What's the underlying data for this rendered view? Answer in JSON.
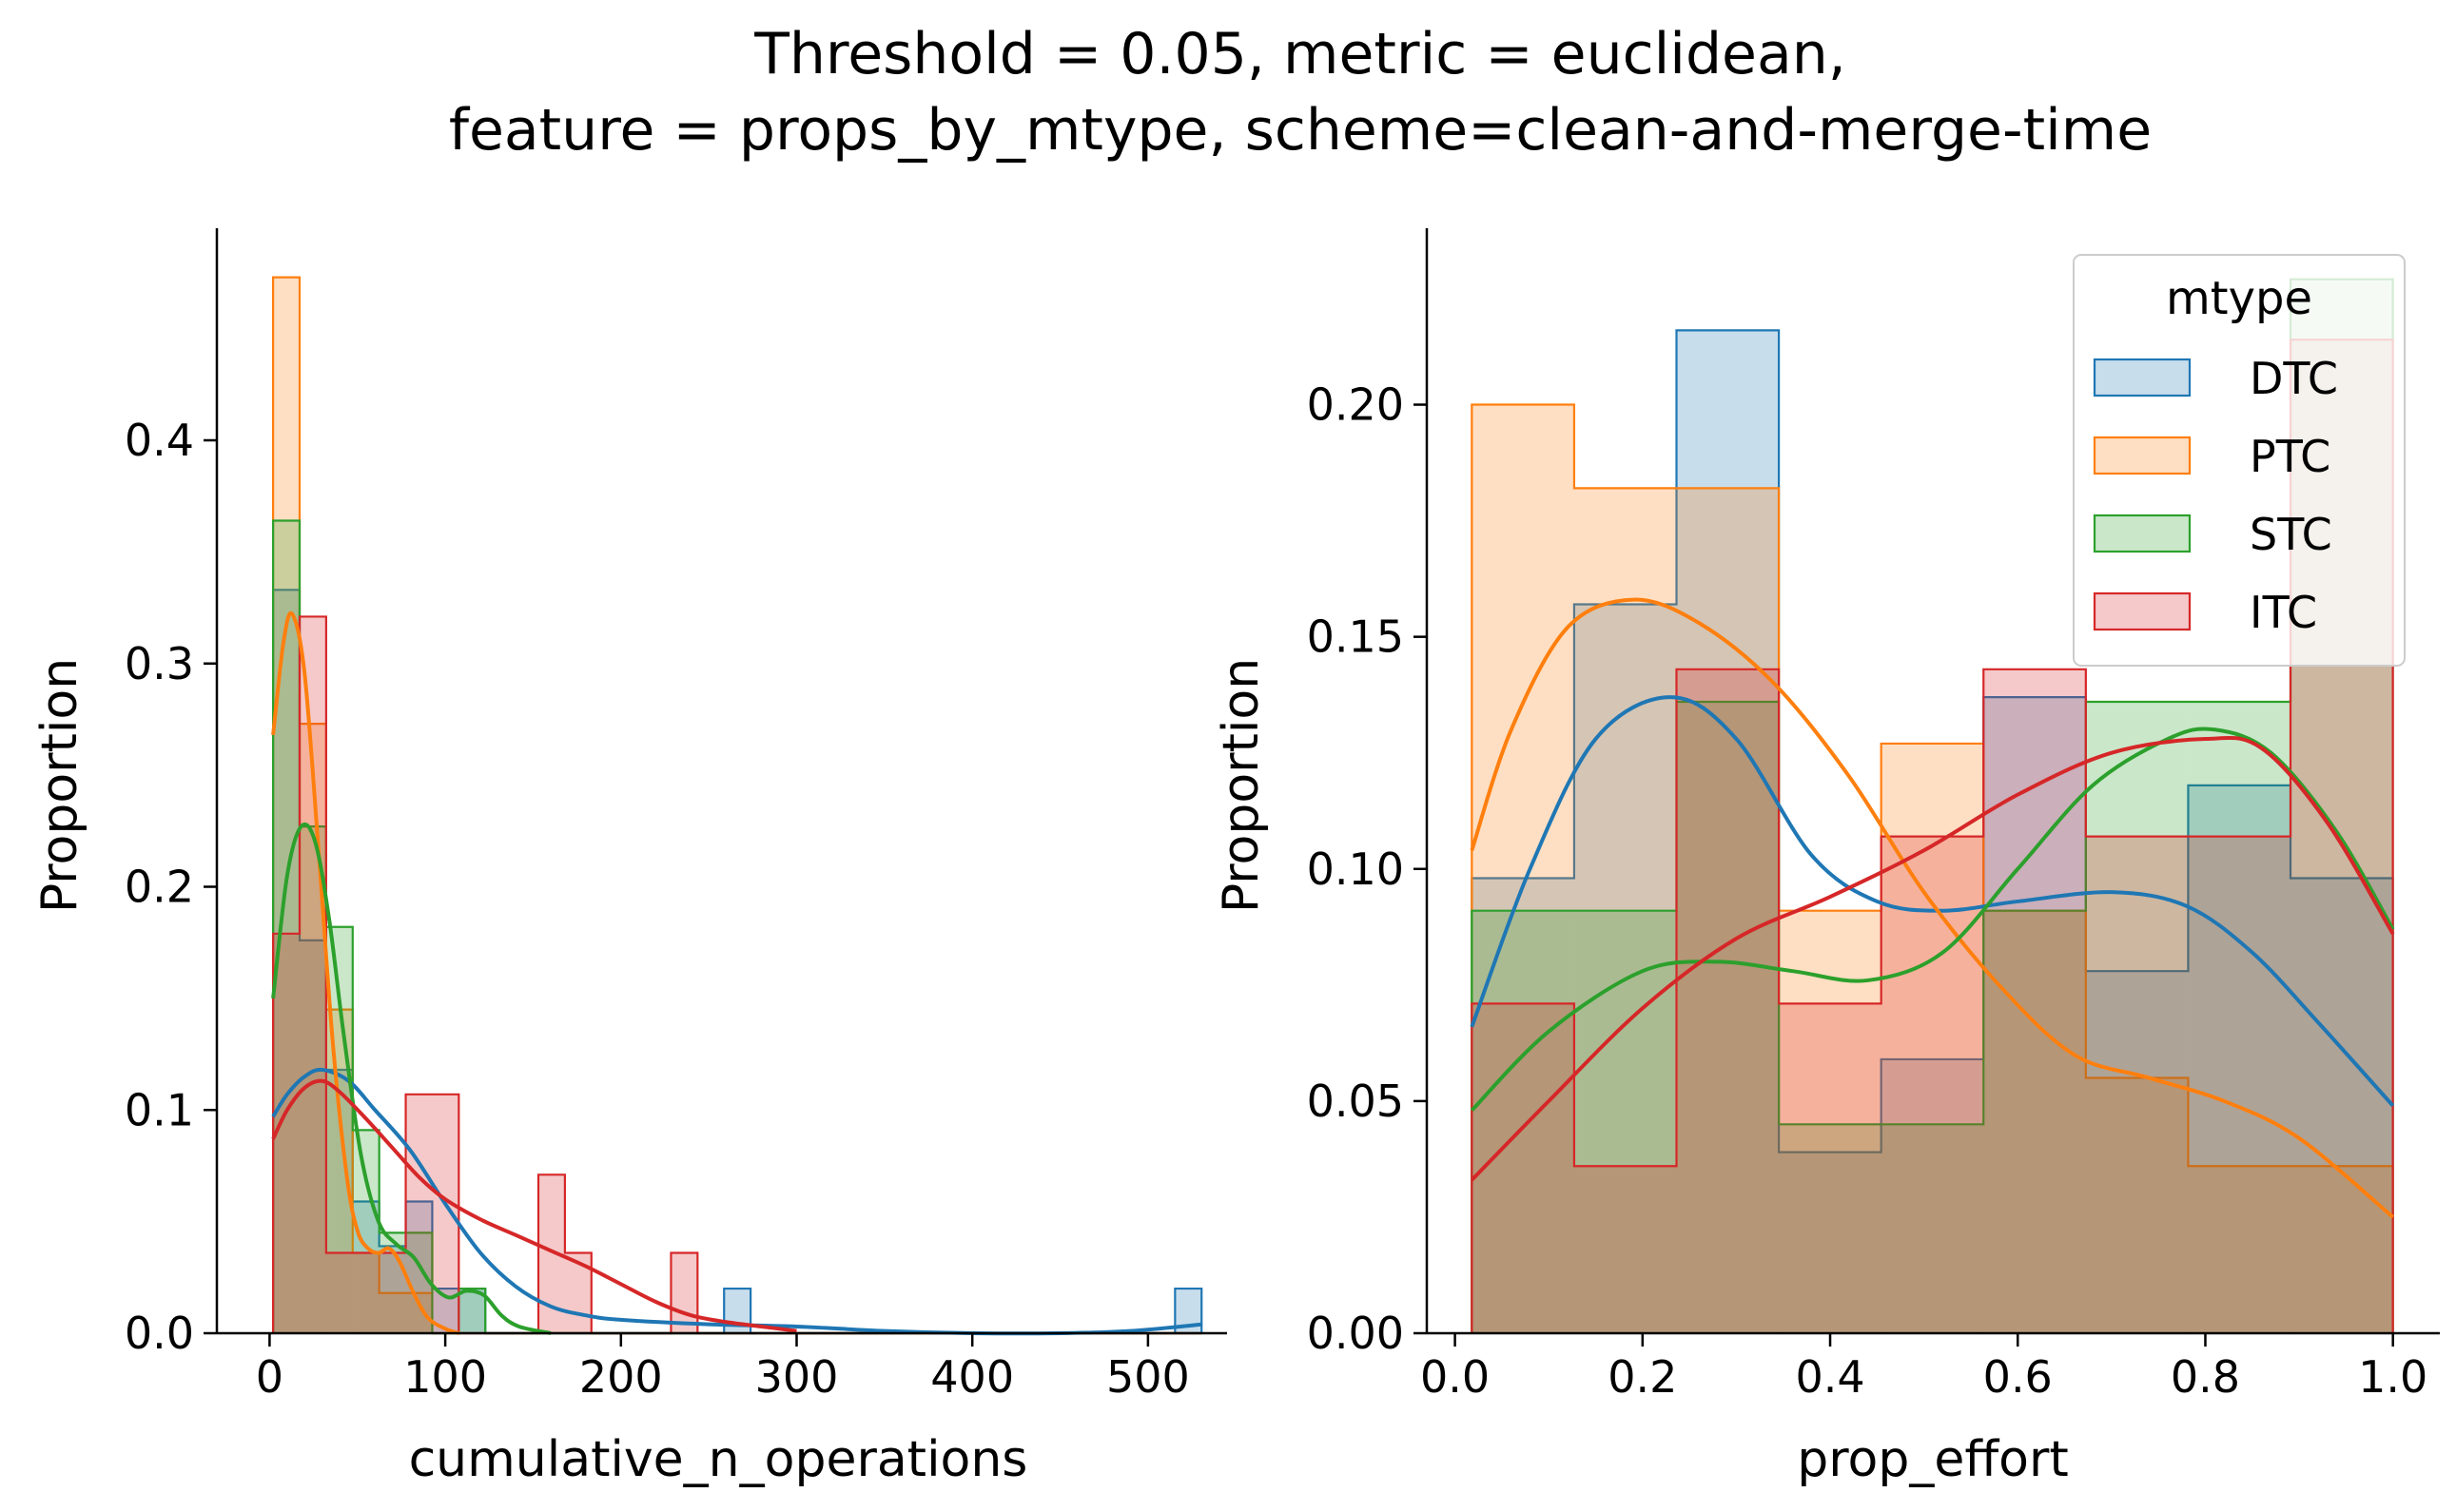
{
  "figure": {
    "title_line1": "Threshold = 0.05, metric = euclidean,",
    "title_line2": "feature = props_by_mtype, scheme=clean-and-merge-time"
  },
  "colors": {
    "DTC": "#1f77b4",
    "PTC": "#ff7f0e",
    "STC": "#2ca02c",
    "ITC": "#d62728"
  },
  "chart_data": [
    {
      "type": "histogram",
      "xlabel": "cumulative_n_operations",
      "ylabel": "Proportion",
      "xlim": [
        -30,
        545
      ],
      "ylim": [
        0,
        0.495
      ],
      "xticks": [
        0,
        100,
        200,
        300,
        400,
        500
      ],
      "xtick_labels": [
        "0",
        "100",
        "200",
        "300",
        "400",
        "500"
      ],
      "yticks": [
        0,
        0.1,
        0.2,
        0.3,
        0.4
      ],
      "ytick_labels": [
        "0.0",
        "0.1",
        "0.2",
        "0.3",
        "0.4"
      ],
      "bin_start": 2,
      "bin_width": 15.1,
      "series": [
        {
          "name": "DTC",
          "values": [
            0.333,
            0.176,
            0.118,
            0.059,
            0.039,
            0.059,
            0.02,
            0.02,
            0,
            0,
            0,
            0,
            0,
            0,
            0,
            0,
            0,
            0.02,
            0,
            0,
            0,
            0,
            0,
            0,
            0,
            0,
            0,
            0,
            0,
            0,
            0,
            0,
            0,
            0,
            0.02
          ],
          "kde": [
            [
              2,
              0.097
            ],
            [
              10,
              0.107
            ],
            [
              20,
              0.115
            ],
            [
              30,
              0.118
            ],
            [
              45,
              0.113
            ],
            [
              60,
              0.1
            ],
            [
              80,
              0.082
            ],
            [
              100,
              0.058
            ],
            [
              120,
              0.036
            ],
            [
              140,
              0.021
            ],
            [
              160,
              0.012
            ],
            [
              180,
              0.008
            ],
            [
              200,
              0.006
            ],
            [
              250,
              0.004
            ],
            [
              300,
              0.003
            ],
            [
              350,
              0.001
            ],
            [
              400,
              0.0
            ],
            [
              450,
              0.0
            ],
            [
              490,
              0.001
            ],
            [
              531,
              0.004
            ]
          ]
        },
        {
          "name": "PTC",
          "values": [
            0.473,
            0.273,
            0.145,
            0.036,
            0.018,
            0.018,
            0,
            0,
            0,
            0,
            0,
            0,
            0,
            0,
            0,
            0,
            0,
            0,
            0,
            0,
            0,
            0,
            0,
            0,
            0,
            0,
            0,
            0,
            0,
            0,
            0,
            0,
            0,
            0,
            0
          ],
          "kde": [
            [
              2,
              0.268
            ],
            [
              8,
              0.31
            ],
            [
              13,
              0.322
            ],
            [
              20,
              0.295
            ],
            [
              28,
              0.215
            ],
            [
              36,
              0.13
            ],
            [
              44,
              0.07
            ],
            [
              50,
              0.046
            ],
            [
              56,
              0.038
            ],
            [
              62,
              0.036
            ],
            [
              68,
              0.038
            ],
            [
              74,
              0.032
            ],
            [
              82,
              0.018
            ],
            [
              90,
              0.007
            ],
            [
              100,
              0.002
            ],
            [
              108,
              0.0
            ]
          ]
        },
        {
          "name": "STC",
          "values": [
            0.364,
            0.227,
            0.182,
            0.091,
            0.045,
            0.045,
            0,
            0.02,
            0,
            0,
            0,
            0,
            0,
            0,
            0,
            0,
            0,
            0,
            0,
            0,
            0,
            0,
            0,
            0,
            0,
            0,
            0,
            0,
            0,
            0,
            0,
            0,
            0,
            0,
            0
          ],
          "kde": [
            [
              2,
              0.15
            ],
            [
              10,
              0.205
            ],
            [
              18,
              0.227
            ],
            [
              26,
              0.22
            ],
            [
              34,
              0.185
            ],
            [
              42,
              0.135
            ],
            [
              52,
              0.08
            ],
            [
              62,
              0.05
            ],
            [
              72,
              0.04
            ],
            [
              82,
              0.034
            ],
            [
              92,
              0.022
            ],
            [
              102,
              0.016
            ],
            [
              112,
              0.019
            ],
            [
              122,
              0.017
            ],
            [
              132,
              0.008
            ],
            [
              142,
              0.003
            ],
            [
              160,
              0.0
            ]
          ]
        },
        {
          "name": "ITC",
          "values": [
            0.179,
            0.321,
            0.036,
            0.036,
            0.036,
            0.107,
            0.107,
            0,
            0,
            0,
            0.071,
            0.036,
            0,
            0,
            0,
            0.036,
            0,
            0,
            0,
            0,
            0,
            0,
            0,
            0,
            0,
            0,
            0,
            0,
            0,
            0,
            0,
            0,
            0,
            0,
            0
          ],
          "kde": [
            [
              2,
              0.087
            ],
            [
              10,
              0.1
            ],
            [
              20,
              0.11
            ],
            [
              30,
              0.113
            ],
            [
              40,
              0.108
            ],
            [
              55,
              0.096
            ],
            [
              70,
              0.083
            ],
            [
              85,
              0.07
            ],
            [
              100,
              0.06
            ],
            [
              120,
              0.051
            ],
            [
              140,
              0.044
            ],
            [
              160,
              0.037
            ],
            [
              180,
              0.03
            ],
            [
              200,
              0.022
            ],
            [
              220,
              0.014
            ],
            [
              240,
              0.008
            ],
            [
              260,
              0.005
            ],
            [
              280,
              0.003
            ],
            [
              300,
              0.001
            ]
          ]
        }
      ]
    },
    {
      "type": "histogram",
      "xlabel": "prop_effort",
      "ylabel": "Proportion",
      "xlim": [
        -0.03,
        1.05
      ],
      "ylim": [
        0,
        0.238
      ],
      "xticks": [
        0.0,
        0.2,
        0.4,
        0.6,
        0.8,
        1.0
      ],
      "xtick_labels": [
        "0.0",
        "0.2",
        "0.4",
        "0.6",
        "0.8",
        "1.0"
      ],
      "yticks": [
        0,
        0.05,
        0.1,
        0.15,
        0.2
      ],
      "ytick_labels": [
        "0.00",
        "0.05",
        "0.10",
        "0.15",
        "0.20"
      ],
      "bin_start": 0.018,
      "bin_width": 0.1091,
      "legend": {
        "title": "mtype",
        "position": "upper right",
        "entries": [
          "DTC",
          "PTC",
          "STC",
          "ITC"
        ]
      },
      "series": [
        {
          "name": "DTC",
          "values": [
            0.098,
            0.157,
            0.216,
            0.039,
            0.059,
            0.137,
            0.078,
            0.118,
            0.098
          ],
          "kde": [
            [
              0.018,
              0.066
            ],
            [
              0.08,
              0.1
            ],
            [
              0.15,
              0.128
            ],
            [
              0.23,
              0.137
            ],
            [
              0.3,
              0.128
            ],
            [
              0.38,
              0.103
            ],
            [
              0.45,
              0.093
            ],
            [
              0.52,
              0.091
            ],
            [
              0.6,
              0.093
            ],
            [
              0.7,
              0.095
            ],
            [
              0.78,
              0.092
            ],
            [
              0.85,
              0.082
            ],
            [
              0.92,
              0.067
            ],
            [
              1.0,
              0.049
            ]
          ]
        },
        {
          "name": "PTC",
          "values": [
            0.2,
            0.182,
            0.182,
            0.091,
            0.127,
            0.091,
            0.055,
            0.036,
            0.036
          ],
          "kde": [
            [
              0.018,
              0.104
            ],
            [
              0.06,
              0.13
            ],
            [
              0.12,
              0.152
            ],
            [
              0.19,
              0.158
            ],
            [
              0.26,
              0.153
            ],
            [
              0.34,
              0.14
            ],
            [
              0.42,
              0.12
            ],
            [
              0.5,
              0.095
            ],
            [
              0.58,
              0.075
            ],
            [
              0.66,
              0.06
            ],
            [
              0.74,
              0.055
            ],
            [
              0.82,
              0.05
            ],
            [
              0.9,
              0.042
            ],
            [
              1.0,
              0.025
            ]
          ]
        },
        {
          "name": "STC",
          "values": [
            0.091,
            0.091,
            0.136,
            0.045,
            0.045,
            0.091,
            0.136,
            0.136,
            0.227
          ],
          "kde": [
            [
              0.018,
              0.048
            ],
            [
              0.1,
              0.065
            ],
            [
              0.2,
              0.078
            ],
            [
              0.28,
              0.08
            ],
            [
              0.36,
              0.078
            ],
            [
              0.44,
              0.076
            ],
            [
              0.52,
              0.082
            ],
            [
              0.6,
              0.1
            ],
            [
              0.68,
              0.118
            ],
            [
              0.76,
              0.128
            ],
            [
              0.81,
              0.13
            ],
            [
              0.87,
              0.125
            ],
            [
              0.94,
              0.108
            ],
            [
              1.0,
              0.087
            ]
          ]
        },
        {
          "name": "ITC",
          "values": [
            0.071,
            0.036,
            0.143,
            0.071,
            0.107,
            0.143,
            0.107,
            0.107,
            0.214
          ],
          "kde": [
            [
              0.018,
              0.033
            ],
            [
              0.1,
              0.05
            ],
            [
              0.2,
              0.07
            ],
            [
              0.3,
              0.085
            ],
            [
              0.4,
              0.094
            ],
            [
              0.5,
              0.104
            ],
            [
              0.6,
              0.116
            ],
            [
              0.7,
              0.125
            ],
            [
              0.8,
              0.128
            ],
            [
              0.86,
              0.126
            ],
            [
              0.93,
              0.11
            ],
            [
              1.0,
              0.086
            ]
          ]
        }
      ]
    }
  ]
}
